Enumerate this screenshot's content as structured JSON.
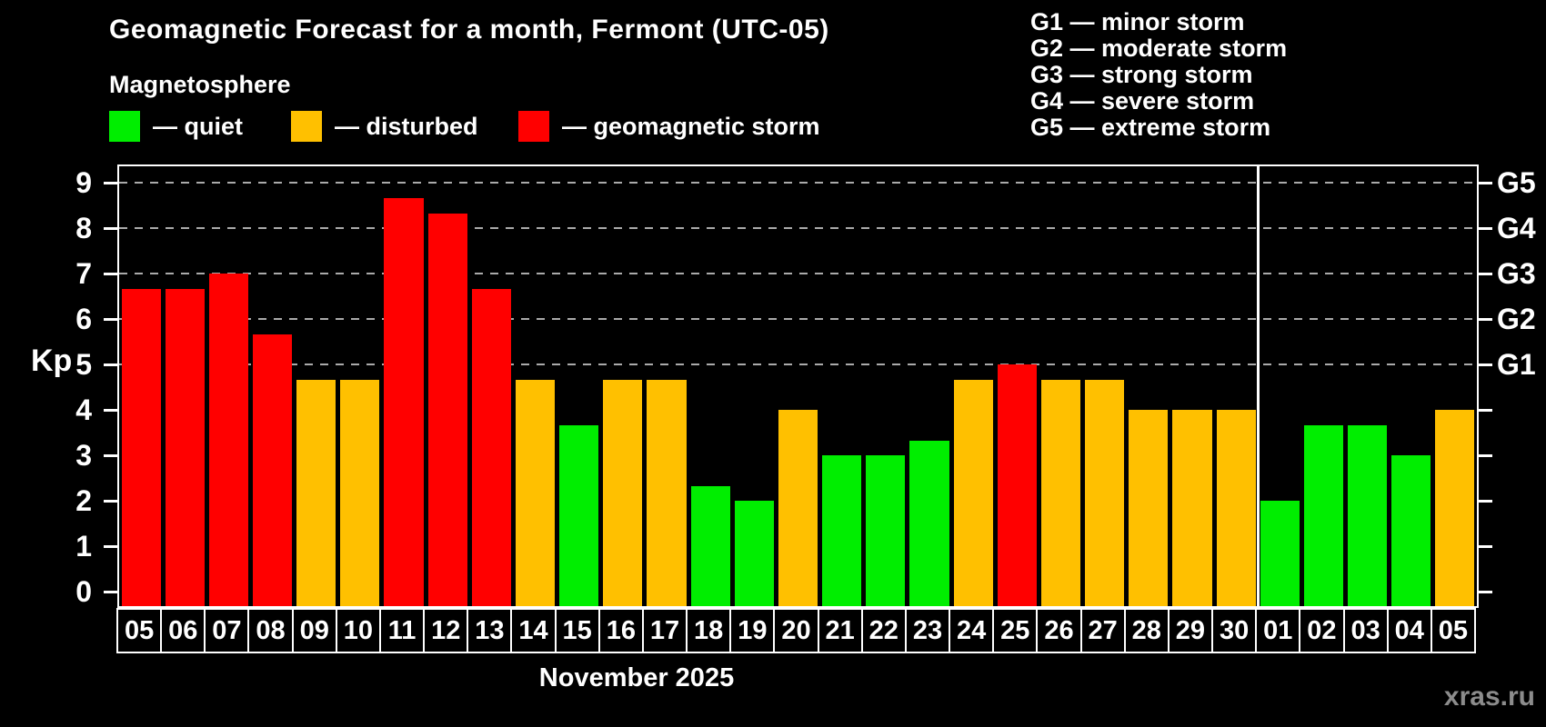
{
  "title": "Geomagnetic Forecast for a month, Fermont (UTC-05)",
  "subtitle": "Magnetosphere",
  "legend": {
    "items": [
      {
        "key": "quiet",
        "label": "— quiet",
        "color": "#00ee00"
      },
      {
        "key": "disturbed",
        "label": "— disturbed",
        "color": "#ffc000"
      },
      {
        "key": "storm",
        "label": "— geomagnetic storm",
        "color": "#ff0000"
      }
    ]
  },
  "g_legend": {
    "lines": [
      "G1 — minor storm",
      "G2 — moderate storm",
      "G3 — strong storm",
      "G4 — severe storm",
      "G5 — extreme storm"
    ]
  },
  "axes": {
    "y_label": "Kp",
    "y_ticks": [
      0,
      1,
      2,
      3,
      4,
      5,
      6,
      7,
      8,
      9
    ],
    "right_labels": [
      {
        "text": "G1",
        "value": 5
      },
      {
        "text": "G2",
        "value": 6
      },
      {
        "text": "G3",
        "value": 7
      },
      {
        "text": "G4",
        "value": 8
      },
      {
        "text": "G5",
        "value": 9
      }
    ]
  },
  "footer": {
    "x_axis_title": "November 2025",
    "watermark": "xras.ru"
  },
  "chart_data": {
    "type": "bar",
    "title": "Geomagnetic Forecast for a month, Fermont (UTC-05)",
    "ylabel": "Kp",
    "ylim": [
      0,
      9
    ],
    "gridlines": [
      5,
      6,
      7,
      8,
      9
    ],
    "legend_position": "top-left",
    "categories": [
      "05",
      "06",
      "07",
      "08",
      "09",
      "10",
      "11",
      "12",
      "13",
      "14",
      "15",
      "16",
      "17",
      "18",
      "19",
      "20",
      "21",
      "22",
      "23",
      "24",
      "25",
      "26",
      "27",
      "28",
      "29",
      "30",
      "01",
      "02",
      "03",
      "04",
      "05"
    ],
    "values": [
      6.67,
      6.67,
      7.0,
      5.67,
      4.67,
      4.67,
      8.67,
      8.33,
      6.67,
      4.67,
      3.67,
      4.67,
      4.67,
      2.33,
      2.0,
      4.0,
      3.0,
      3.0,
      3.33,
      4.67,
      5.0,
      4.67,
      4.67,
      4.0,
      4.0,
      4.0,
      2.0,
      3.67,
      3.67,
      3.0,
      4.0
    ],
    "statuses": [
      "storm",
      "storm",
      "storm",
      "storm",
      "disturbed",
      "disturbed",
      "storm",
      "storm",
      "storm",
      "disturbed",
      "quiet",
      "disturbed",
      "disturbed",
      "quiet",
      "quiet",
      "disturbed",
      "quiet",
      "quiet",
      "quiet",
      "disturbed",
      "storm",
      "disturbed",
      "disturbed",
      "disturbed",
      "disturbed",
      "disturbed",
      "quiet",
      "quiet",
      "quiet",
      "quiet",
      "disturbed"
    ],
    "colors": {
      "quiet": "#00ee00",
      "disturbed": "#ffc000",
      "storm": "#ff0000"
    },
    "separator_after_index": 25,
    "month_label": "November 2025"
  }
}
